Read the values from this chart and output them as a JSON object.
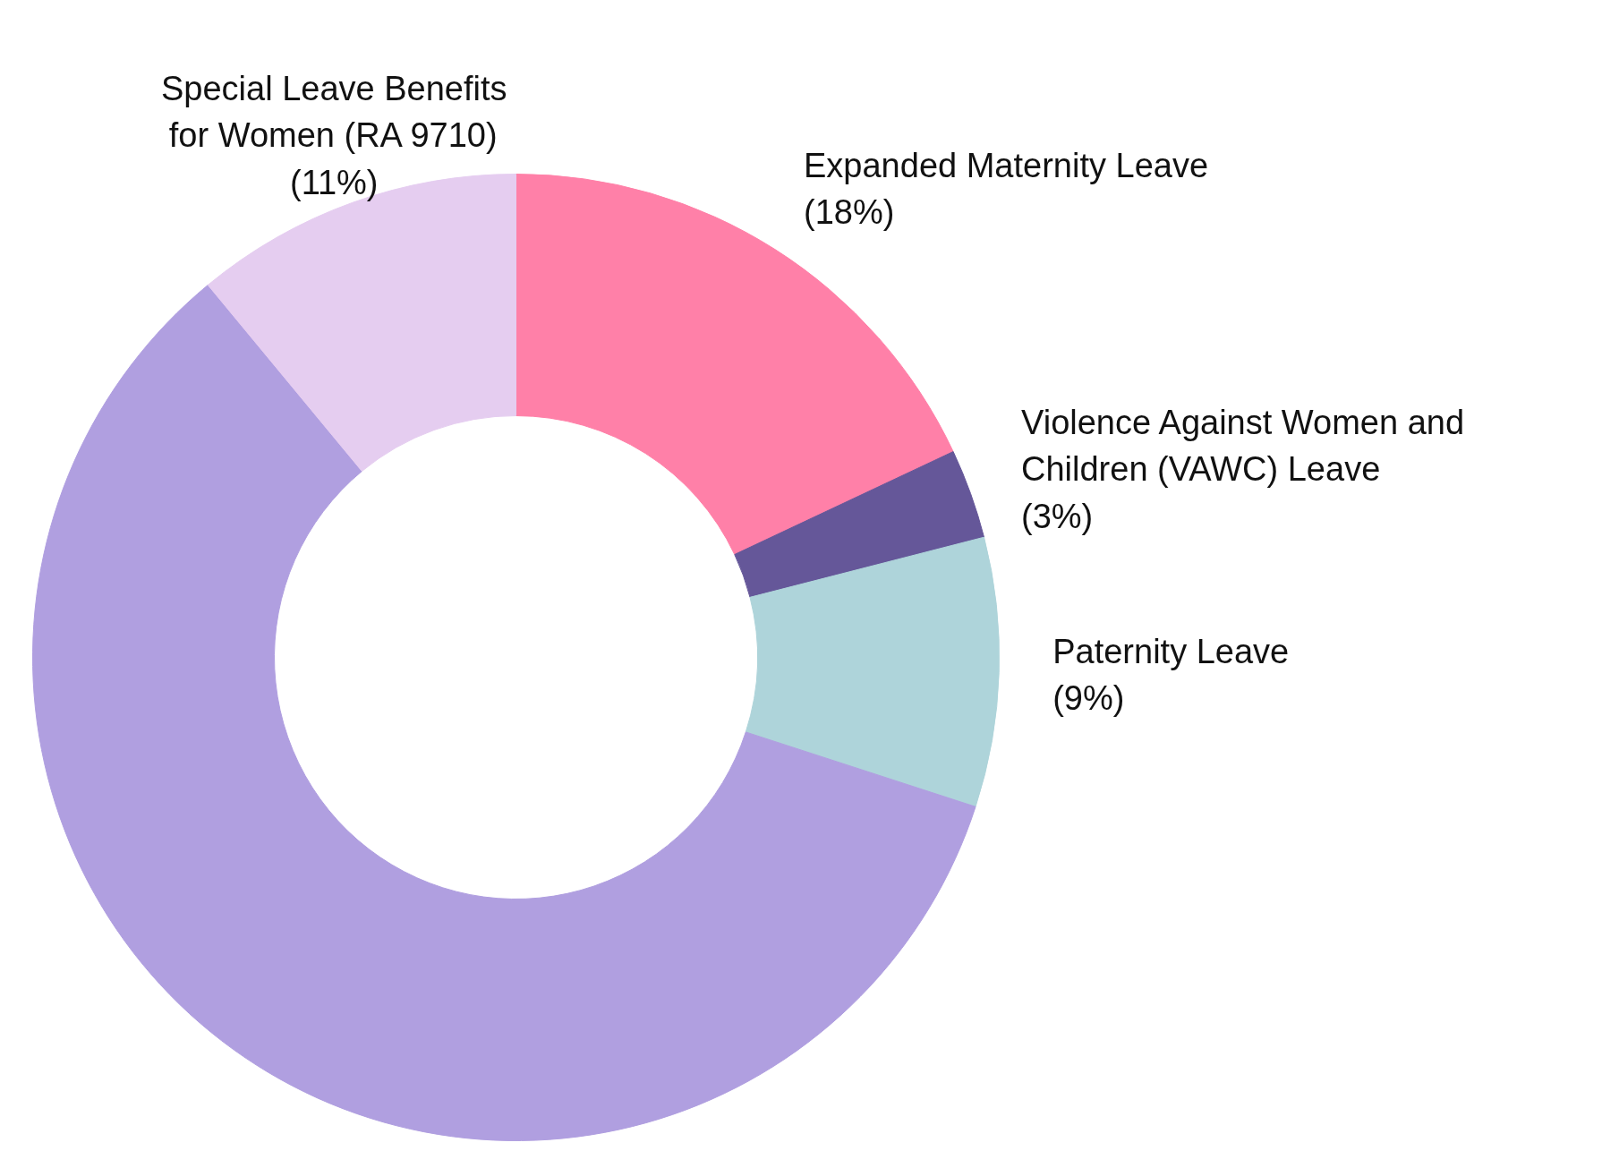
{
  "chart_data": {
    "type": "donut",
    "categories": [
      "Expanded Maternity Leave",
      "Violence Against Women and\nChildren (VAWC) Leave",
      "Paternity Leave",
      null,
      "Special Leave Benefits\nfor Women (RA 9710)"
    ],
    "values": [
      18,
      3,
      9,
      59,
      11
    ],
    "colors": [
      "#ff80a8",
      "#655799",
      "#aed4da",
      "#b09fe0",
      "#e5cdf0"
    ],
    "value_labels": [
      "(18%)",
      "(3%)",
      "(9%)",
      null,
      "(11%)"
    ]
  }
}
